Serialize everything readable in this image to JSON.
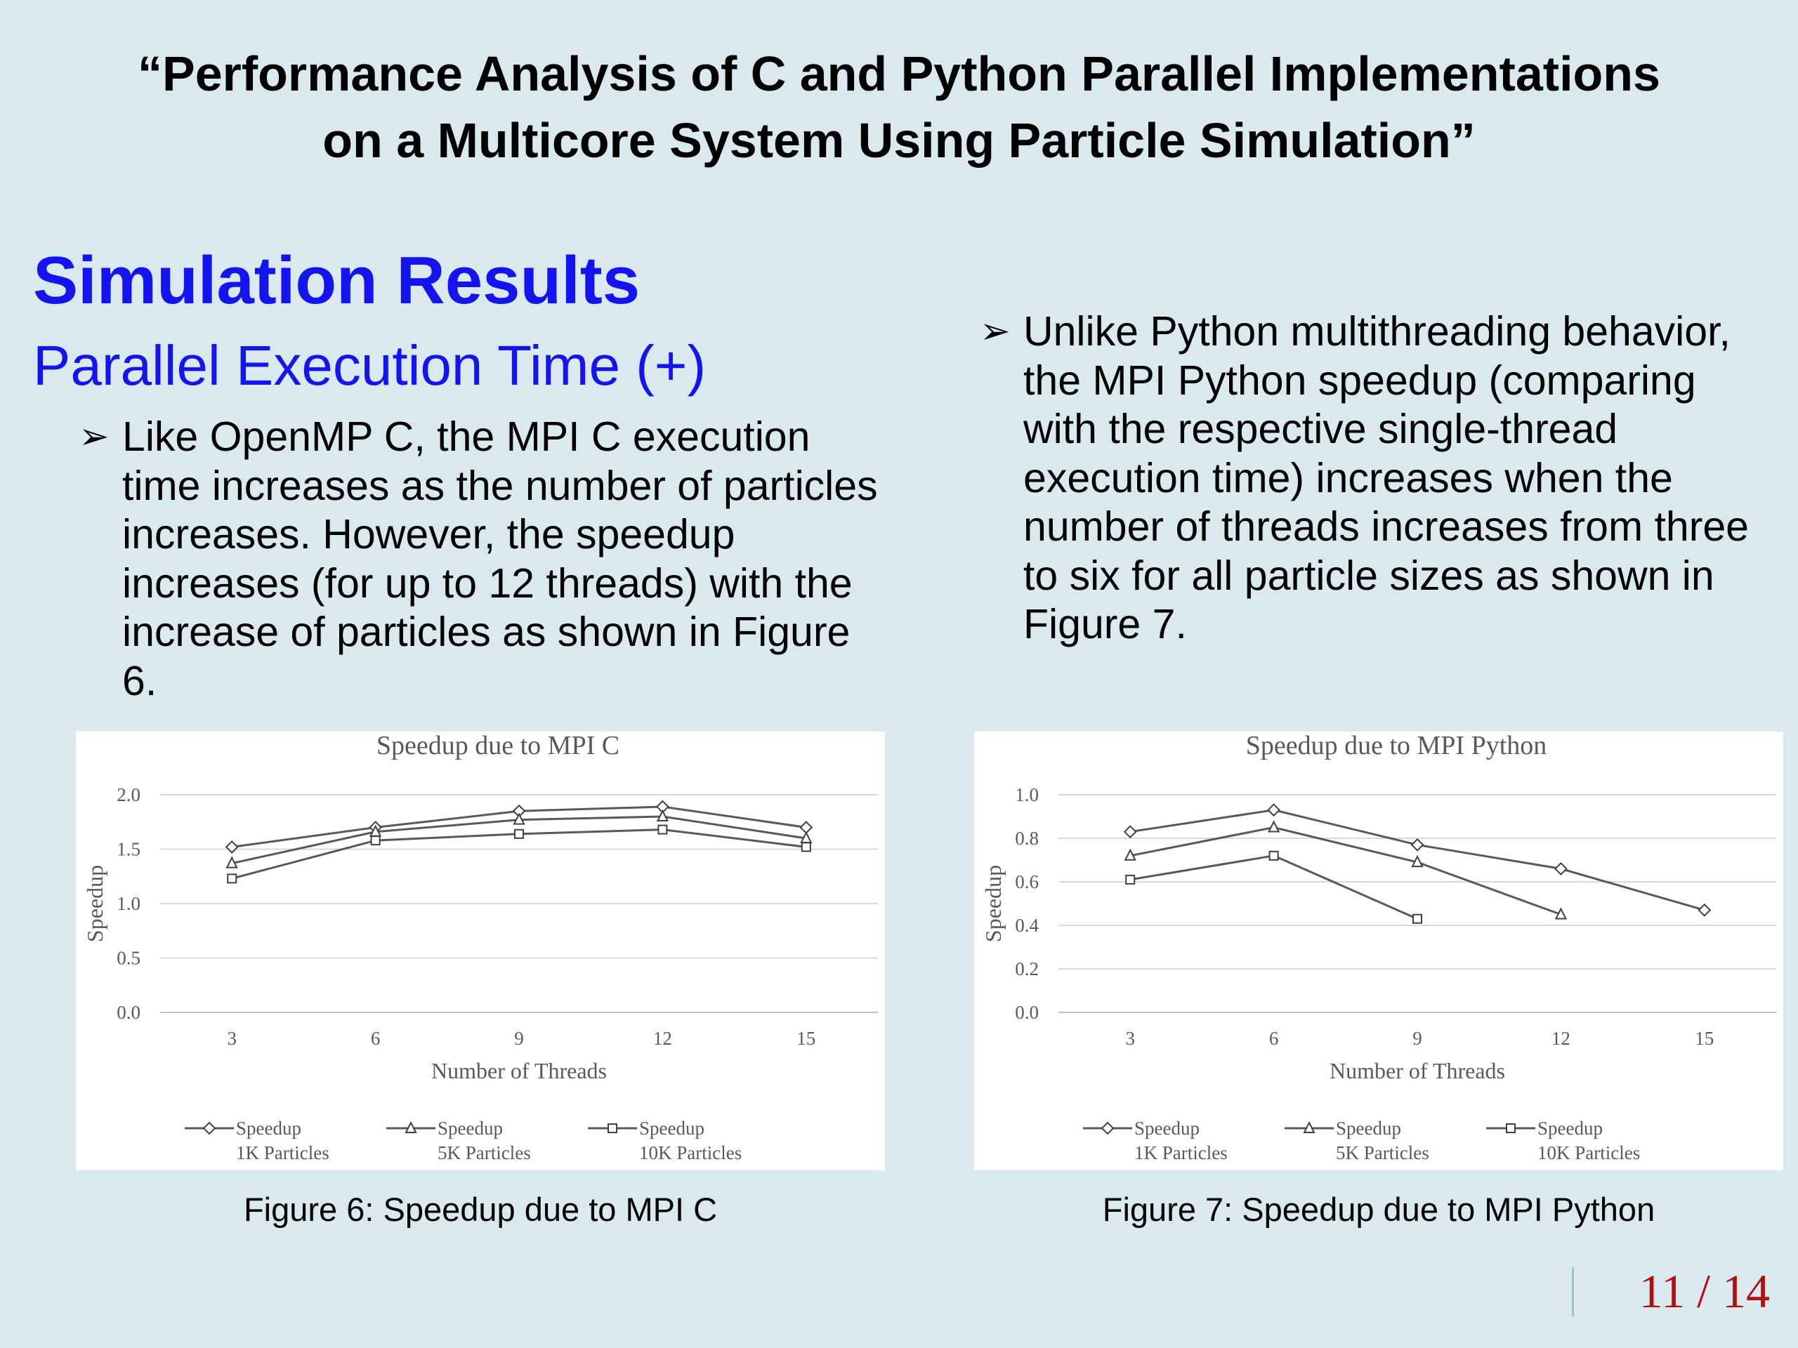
{
  "slide": {
    "title_line1": "“Performance Analysis of C and Python Parallel Implementations",
    "title_line2": "on a Multicore System Using Particle Simulation”",
    "section_heading": "Simulation Results",
    "section_subheading": "Parallel Execution Time (+)",
    "bullet_left": "Like OpenMP C, the MPI C execution time increases as the number of particles increases. However, the speedup increases (for up to 12 threads) with the increase of particles as shown in Figure 6.",
    "bullet_right": "Unlike Python multithreading behavior, the MPI Python speedup (comparing with the respective single-thread execution time) increases when the number of threads increases from three to six for all particle sizes as shown in Figure 7.",
    "bullet_icon": "arrow-bullet-icon",
    "caption_left": "Figure 6: Speedup due to MPI C",
    "caption_right": "Figure 7: Speedup due to MPI Python",
    "page_number": "11 / 14"
  },
  "colors": {
    "background": "#dae9ed",
    "heading_blue": "#1414f0",
    "page_number_red": "#b01010",
    "chart_line": "#595959",
    "gridline": "#d9d9d9"
  },
  "chart_data": [
    {
      "type": "line",
      "title": "Speedup due to MPI C",
      "xlabel": "Number of Threads",
      "ylabel": "Speedup",
      "categories": [
        "3",
        "6",
        "9",
        "12",
        "15"
      ],
      "ylim": [
        0,
        2
      ],
      "yticks": [
        "0.0",
        "0.5",
        "1.0",
        "1.5",
        "2.0"
      ],
      "grid": true,
      "legend_position": "bottom",
      "series": [
        {
          "name": "Speedup 1K Particles",
          "label_line1": "Speedup",
          "label_line2": "1K Particles",
          "marker": "diamond",
          "values": [
            1.52,
            1.7,
            1.85,
            1.89,
            1.7
          ]
        },
        {
          "name": "Speedup 5K Particles",
          "label_line1": "Speedup",
          "label_line2": "5K Particles",
          "marker": "triangle",
          "values": [
            1.37,
            1.66,
            1.77,
            1.8,
            1.6
          ]
        },
        {
          "name": "Speedup 10K Particles",
          "label_line1": "Speedup",
          "label_line2": "10K Particles",
          "marker": "square",
          "values": [
            1.23,
            1.58,
            1.64,
            1.68,
            1.52
          ]
        }
      ]
    },
    {
      "type": "line",
      "title": "Speedup due to MPI Python",
      "xlabel": "Number of Threads",
      "ylabel": "Speedup",
      "categories": [
        "3",
        "6",
        "9",
        "12",
        "15"
      ],
      "ylim": [
        0,
        1
      ],
      "yticks": [
        "0.0",
        "0.2",
        "0.4",
        "0.6",
        "0.8",
        "1.0"
      ],
      "grid": true,
      "legend_position": "bottom",
      "series": [
        {
          "name": "Speedup 1K Particles",
          "label_line1": "Speedup",
          "label_line2": "1K Particles",
          "marker": "diamond",
          "values": [
            0.83,
            0.93,
            0.77,
            0.66,
            0.47
          ]
        },
        {
          "name": "Speedup 5K Particles",
          "label_line1": "Speedup",
          "label_line2": "5K Particles",
          "marker": "triangle",
          "values": [
            0.72,
            0.85,
            0.69,
            0.45,
            null
          ]
        },
        {
          "name": "Speedup 10K Particles",
          "label_line1": "Speedup",
          "label_line2": "10K Particles",
          "marker": "square",
          "values": [
            0.61,
            0.72,
            0.43,
            null,
            null
          ]
        }
      ]
    }
  ]
}
